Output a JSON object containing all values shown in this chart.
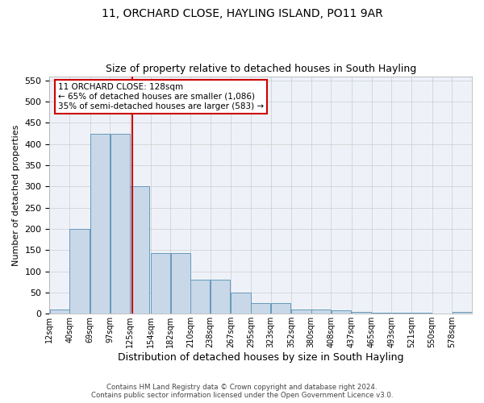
{
  "title1": "11, ORCHARD CLOSE, HAYLING ISLAND, PO11 9AR",
  "title2": "Size of property relative to detached houses in South Hayling",
  "xlabel": "Distribution of detached houses by size in South Hayling",
  "ylabel": "Number of detached properties",
  "bar_values": [
    10,
    200,
    425,
    425,
    300,
    143,
    143,
    80,
    80,
    50,
    25,
    25,
    10,
    10,
    8,
    5,
    3,
    3,
    3,
    0,
    5
  ],
  "bin_edges": [
    12,
    40,
    69,
    97,
    125,
    154,
    182,
    210,
    238,
    267,
    295,
    323,
    352,
    380,
    408,
    437,
    465,
    493,
    521,
    550,
    578
  ],
  "bin_width": 28,
  "tick_labels": [
    "12sqm",
    "40sqm",
    "69sqm",
    "97sqm",
    "125sqm",
    "154sqm",
    "182sqm",
    "210sqm",
    "238sqm",
    "267sqm",
    "295sqm",
    "323sqm",
    "352sqm",
    "380sqm",
    "408sqm",
    "437sqm",
    "465sqm",
    "493sqm",
    "521sqm",
    "550sqm",
    "578sqm"
  ],
  "bar_color": "#c8d8e8",
  "bar_edge_color": "#6699bb",
  "grid_color": "#cccccc",
  "background_color": "#eef2f8",
  "annotation_box_color": "#cc0000",
  "property_line_color": "#cc0000",
  "property_size": 128,
  "annotation_line1": "11 ORCHARD CLOSE: 128sqm",
  "annotation_line2": "← 65% of detached houses are smaller (1,086)",
  "annotation_line3": "35% of semi-detached houses are larger (583) →",
  "ylim": [
    0,
    560
  ],
  "yticks": [
    0,
    50,
    100,
    150,
    200,
    250,
    300,
    350,
    400,
    450,
    500,
    550
  ],
  "footnote1": "Contains HM Land Registry data © Crown copyright and database right 2024.",
  "footnote2": "Contains public sector information licensed under the Open Government Licence v3.0.",
  "title1_fontsize": 10,
  "title2_fontsize": 9,
  "ylabel_fontsize": 8,
  "xlabel_fontsize": 9,
  "ytick_fontsize": 8,
  "xtick_fontsize": 7
}
